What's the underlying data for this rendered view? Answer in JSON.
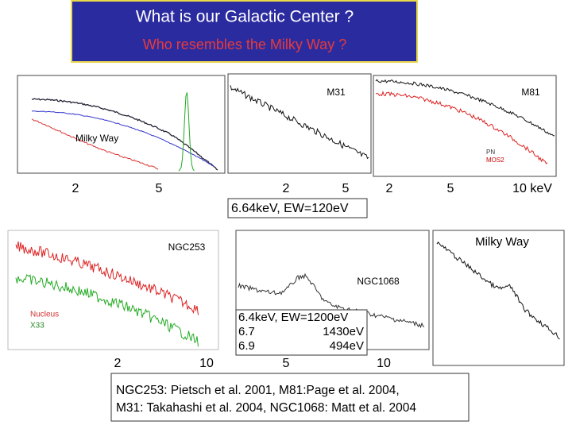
{
  "header": {
    "title": "What is our  Galactic Center ?",
    "subtitle": "Who resembles the Milky Way ?"
  },
  "top_panels": [
    {
      "label": "Milky Way",
      "axis_labels": [
        "2",
        "5"
      ]
    },
    {
      "label": "M31",
      "axis_labels": [
        "2",
        "5"
      ],
      "note": "6.64keV, EW=120eV"
    },
    {
      "label": "M81",
      "axis_labels": [
        "2",
        "5",
        "10  keV"
      ],
      "legend": [
        "PN",
        "MOS2"
      ]
    }
  ],
  "bottom_panels": [
    {
      "label": "NGC253",
      "axis_labels": [
        "2",
        "10"
      ],
      "legend": [
        "Nucleus",
        "X33"
      ]
    },
    {
      "label": "NGC1068",
      "axis_labels": [
        "5",
        "10"
      ],
      "note": [
        "6.4keV, EW=1200eV",
        "6.7",
        "1430eV",
        "6.9",
        "494eV"
      ]
    },
    {
      "label": "Milky Way"
    }
  ],
  "citation": [
    "NGC253: Pietsch et al. 2001,  M81:Page et al. 2004,",
    "M31: Takahashi et al. 2004, NGC1068: Matt et al. 2004"
  ]
}
